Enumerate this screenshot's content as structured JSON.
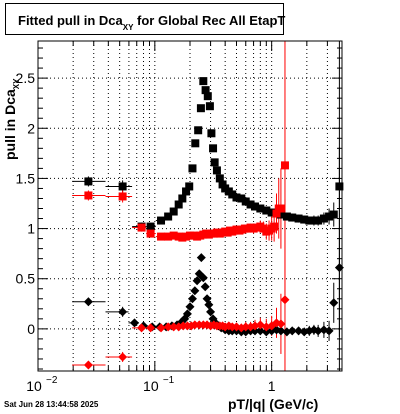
{
  "title": {
    "main": "Fitted pull in Dca",
    "sub": "XY",
    "suffix": " for Global Rec All EtapT"
  },
  "ylabel": {
    "main": "pull in Dca",
    "sub": "XY"
  },
  "xlabel": "pT/|q| (GeV/c)",
  "timestamp": "Sat Jun 28 13:44:58 2025",
  "chart_data": {
    "type": "scatter",
    "x_scale": "log",
    "xlim": [
      0.01,
      4.0
    ],
    "ylim": [
      -0.42,
      2.87
    ],
    "grid": true,
    "y_ticks": [
      {
        "v": 0,
        "label": "0"
      },
      {
        "v": 0.5,
        "label": "0.5"
      },
      {
        "v": 1,
        "label": "1"
      },
      {
        "v": 1.5,
        "label": "1.5"
      },
      {
        "v": 2,
        "label": "2"
      },
      {
        "v": 2.5,
        "label": "2.5"
      }
    ],
    "x_ticks": [
      {
        "v": 0.01,
        "label": "10",
        "sup": "−2"
      },
      {
        "v": 0.1,
        "label": "10",
        "sup": "−1"
      },
      {
        "v": 1,
        "label": "1",
        "sup": ""
      }
    ],
    "series": [
      {
        "marker": "square",
        "color": "#000000",
        "x": [
          0.027,
          0.053,
          0.077,
          0.092,
          0.113,
          0.13,
          0.145,
          0.16,
          0.172,
          0.185,
          0.197,
          0.21,
          0.222,
          0.235,
          0.248,
          0.26,
          0.272,
          0.284,
          0.296,
          0.305,
          0.315,
          0.325,
          0.34,
          0.36,
          0.38,
          0.4,
          0.43,
          0.46,
          0.5,
          0.55,
          0.6,
          0.66,
          0.72,
          0.8,
          0.9,
          1.0,
          1.1,
          1.2,
          1.35,
          1.5,
          1.7,
          1.9,
          2.1,
          2.3,
          2.5,
          2.8,
          3.1,
          3.4,
          3.8
        ],
        "y": [
          1.47,
          1.42,
          1.02,
          1.02,
          1.08,
          1.12,
          1.17,
          1.24,
          1.3,
          1.37,
          1.42,
          1.6,
          1.85,
          1.98,
          2.2,
          2.47,
          2.38,
          2.32,
          2.22,
          1.95,
          1.8,
          1.66,
          1.58,
          1.5,
          1.44,
          1.4,
          1.37,
          1.34,
          1.31,
          1.3,
          1.27,
          1.24,
          1.22,
          1.2,
          1.18,
          1.16,
          1.15,
          1.14,
          1.12,
          1.11,
          1.1,
          1.09,
          1.08,
          1.08,
          1.08,
          1.1,
          1.12,
          1.14,
          1.42
        ],
        "err": [
          0.05,
          0.06,
          0.04,
          0.03,
          0.02,
          0.02,
          0.02,
          0.02,
          0.02,
          0.02,
          0.02,
          0.02,
          0.02,
          0.02,
          0.02,
          0.02,
          0.02,
          0.02,
          0.02,
          0.02,
          0.02,
          0.02,
          0.02,
          0.02,
          0.02,
          0.02,
          0.02,
          0.02,
          0.02,
          0.02,
          0.02,
          0.02,
          0.02,
          0.02,
          0.03,
          0.03,
          0.04,
          0.04,
          0.04,
          0.04,
          0.04,
          0.04,
          0.04,
          0.05,
          0.05,
          0.06,
          0.08,
          0.12,
          1.5
        ]
      },
      {
        "marker": "square",
        "color": "#ff0000",
        "x": [
          0.027,
          0.053,
          0.077,
          0.092,
          0.113,
          0.13,
          0.145,
          0.16,
          0.172,
          0.185,
          0.2,
          0.215,
          0.23,
          0.245,
          0.26,
          0.275,
          0.29,
          0.305,
          0.32,
          0.34,
          0.36,
          0.38,
          0.4,
          0.42,
          0.44,
          0.46,
          0.48,
          0.5,
          0.53,
          0.56,
          0.59,
          0.62,
          0.66,
          0.7,
          0.75,
          0.8,
          0.85,
          0.9,
          0.95,
          1.0,
          1.05,
          1.1,
          1.15,
          1.2,
          1.3
        ],
        "y": [
          1.33,
          1.32,
          1.01,
          0.95,
          0.92,
          0.92,
          0.93,
          0.92,
          0.91,
          0.92,
          0.93,
          0.93,
          0.92,
          0.93,
          0.94,
          0.95,
          0.94,
          0.95,
          0.95,
          0.96,
          0.95,
          0.96,
          0.97,
          0.96,
          0.98,
          0.97,
          0.98,
          0.99,
          0.98,
          0.99,
          1.0,
          1.0,
          1.01,
          1.0,
          1.01,
          1.02,
          1.0,
          0.97,
          0.98,
          1.0,
          1.02,
          1.15,
          1.2,
          1.2,
          1.63
        ],
        "err": [
          0.05,
          0.06,
          0.04,
          0.03,
          0.02,
          0.02,
          0.02,
          0.02,
          0.02,
          0.02,
          0.02,
          0.02,
          0.02,
          0.02,
          0.02,
          0.02,
          0.02,
          0.02,
          0.02,
          0.02,
          0.02,
          0.03,
          0.03,
          0.03,
          0.03,
          0.03,
          0.03,
          0.03,
          0.03,
          0.03,
          0.04,
          0.04,
          0.04,
          0.05,
          0.05,
          0.06,
          0.07,
          0.08,
          0.1,
          0.12,
          0.15,
          0.2,
          0.3,
          0.4,
          1.3
        ]
      },
      {
        "marker": "circle",
        "color": "#000000",
        "x": [
          0.027,
          0.053,
          0.067,
          0.08,
          0.095,
          0.11,
          0.125,
          0.14,
          0.155,
          0.17,
          0.18,
          0.19,
          0.2,
          0.21,
          0.22,
          0.23,
          0.24,
          0.25,
          0.26,
          0.27,
          0.28,
          0.29,
          0.3,
          0.315,
          0.33,
          0.35,
          0.37,
          0.4,
          0.43,
          0.46,
          0.5,
          0.55,
          0.6,
          0.66,
          0.72,
          0.8,
          0.9,
          1.0,
          1.1,
          1.2,
          1.35,
          1.5,
          1.7,
          1.9,
          2.1,
          2.3,
          2.5,
          2.8,
          3.1,
          3.4,
          3.8
        ],
        "y": [
          0.27,
          0.17,
          0.06,
          0.03,
          0.02,
          0.02,
          0.02,
          0.03,
          0.04,
          0.07,
          0.1,
          0.15,
          0.22,
          0.3,
          0.38,
          0.48,
          0.55,
          0.71,
          0.51,
          0.42,
          0.3,
          0.24,
          0.17,
          0.1,
          0.06,
          0.03,
          0.01,
          -0.01,
          -0.02,
          -0.02,
          -0.02,
          -0.03,
          -0.03,
          -0.02,
          -0.02,
          -0.02,
          -0.03,
          -0.02,
          -0.01,
          -0.02,
          -0.03,
          -0.02,
          -0.02,
          -0.03,
          -0.02,
          -0.01,
          -0.02,
          -0.01,
          -0.02,
          0.26,
          0.61
        ],
        "err": [
          0.04,
          0.05,
          0.03,
          0.02,
          0.02,
          0.02,
          0.02,
          0.02,
          0.02,
          0.02,
          0.02,
          0.02,
          0.02,
          0.02,
          0.02,
          0.02,
          0.02,
          0.02,
          0.02,
          0.02,
          0.02,
          0.02,
          0.02,
          0.02,
          0.02,
          0.02,
          0.02,
          0.02,
          0.02,
          0.02,
          0.02,
          0.02,
          0.02,
          0.02,
          0.02,
          0.02,
          0.03,
          0.03,
          0.04,
          0.04,
          0.04,
          0.04,
          0.04,
          0.04,
          0.05,
          0.05,
          0.06,
          0.08,
          0.1,
          0.2,
          1.2
        ]
      },
      {
        "marker": "circle",
        "color": "#ff0000",
        "x": [
          0.027,
          0.053,
          0.077,
          0.092,
          0.113,
          0.13,
          0.145,
          0.16,
          0.175,
          0.19,
          0.205,
          0.22,
          0.24,
          0.26,
          0.28,
          0.3,
          0.32,
          0.34,
          0.36,
          0.38,
          0.4,
          0.43,
          0.46,
          0.5,
          0.55,
          0.6,
          0.66,
          0.72,
          0.8,
          0.9,
          1.0,
          1.1,
          1.2,
          1.3
        ],
        "y": [
          -0.36,
          -0.28,
          0.01,
          0.01,
          0.01,
          0.02,
          0.02,
          0.02,
          0.03,
          0.03,
          0.03,
          0.04,
          0.04,
          0.04,
          0.04,
          0.03,
          0.04,
          0.03,
          0.03,
          0.03,
          0.02,
          0.03,
          0.02,
          0.02,
          0.01,
          0.02,
          0.02,
          0.03,
          0.04,
          0.02,
          0.03,
          0.06,
          0.05,
          0.29
        ],
        "err": [
          0.04,
          0.05,
          0.03,
          0.02,
          0.02,
          0.02,
          0.02,
          0.02,
          0.02,
          0.02,
          0.02,
          0.02,
          0.02,
          0.02,
          0.02,
          0.02,
          0.02,
          0.02,
          0.03,
          0.03,
          0.03,
          0.03,
          0.03,
          0.04,
          0.04,
          0.05,
          0.05,
          0.06,
          0.07,
          0.08,
          0.1,
          0.15,
          0.3,
          1.0
        ]
      }
    ]
  }
}
